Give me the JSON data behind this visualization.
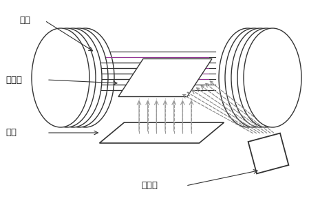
{
  "bg_color": "#ffffff",
  "line_color": "#333333",
  "arrow_color": "#999999",
  "dashed_color": "#888888",
  "purple_color": "#993399",
  "text_color": "#111111",
  "labels": {
    "tape": "带材",
    "heater": "加热器",
    "target": "靶材",
    "ion_beam": "离子束"
  }
}
